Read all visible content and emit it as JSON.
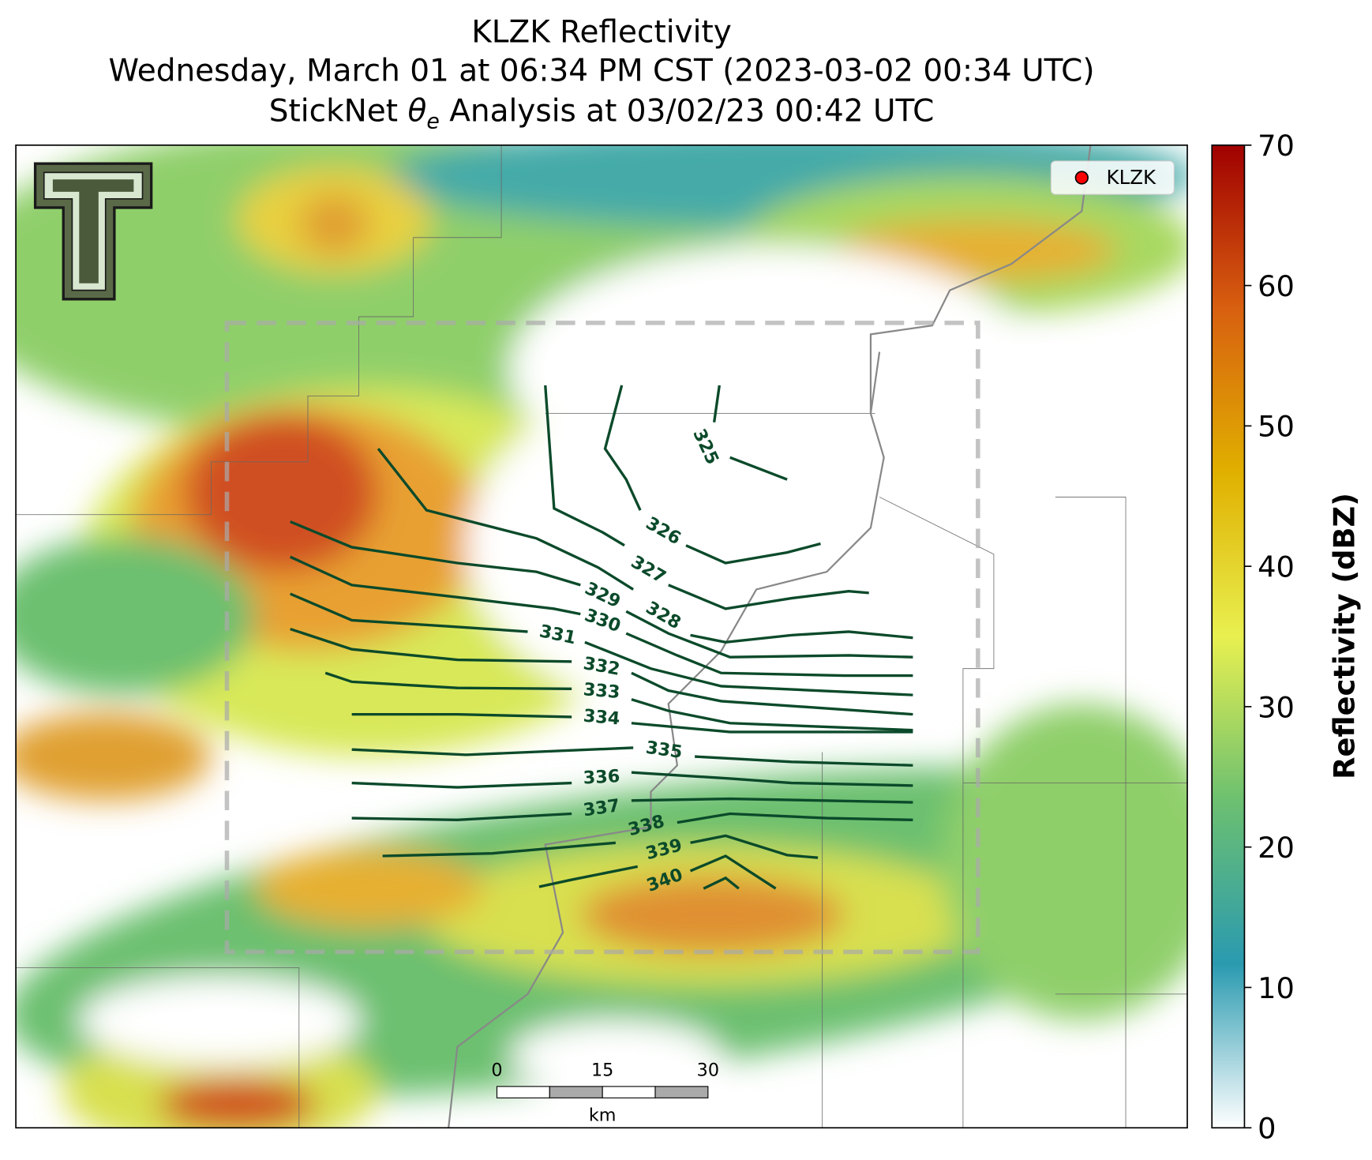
{
  "title": {
    "line1": "KLZK Reflectivity",
    "line2": "Wednesday, March 01 at 06:34 PM CST (2023-03-02 00:34 UTC)",
    "line3": {
      "prefix": "StickNet",
      "symbol": "θ",
      "subscript": "e",
      "suffix": "Analysis at 03/02/23 00:42 UTC"
    }
  },
  "legend": {
    "label": "KLZK",
    "color": "#ff0000"
  },
  "contours": {
    "color": "#0b4a2a",
    "labels": [
      325,
      326,
      327,
      328,
      329,
      330,
      331,
      332,
      333,
      334,
      335,
      336,
      337,
      338,
      339,
      340
    ]
  },
  "colorbar": {
    "label": "Reflectivity (dBZ)",
    "lim": [
      0,
      70
    ],
    "ticks": [
      0,
      10,
      20,
      30,
      40,
      50,
      60,
      70
    ],
    "colors": [
      "#ffffff",
      "#2a9ab0",
      "#6cc070",
      "#e8f050",
      "#e0b000",
      "#d86010",
      "#a00000"
    ]
  },
  "scale_bar": {
    "ticks": [
      0,
      15,
      30
    ],
    "unit": "km"
  }
}
